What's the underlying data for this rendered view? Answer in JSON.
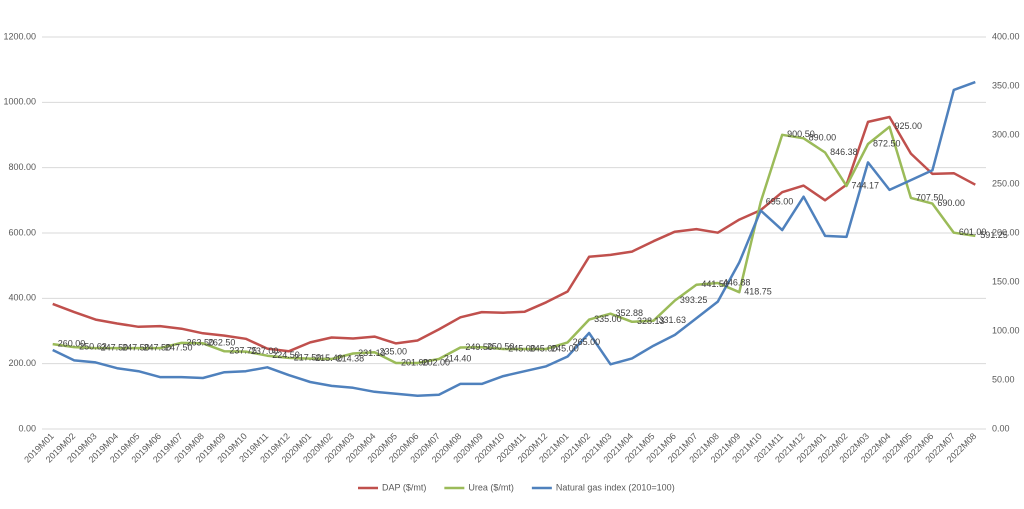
{
  "chart_data": {
    "type": "line",
    "categories": [
      "2019M01",
      "2019M02",
      "2019M03",
      "2019M04",
      "2019M05",
      "2019M06",
      "2019M07",
      "2019M08",
      "2019M09",
      "2019M10",
      "2019M11",
      "2019M12",
      "2020M01",
      "2020M02",
      "2020M03",
      "2020M04",
      "2020M05",
      "2020M06",
      "2020M07",
      "2020M08",
      "2020M09",
      "2020M10",
      "2020M11",
      "2020M12",
      "2021M01",
      "2021M02",
      "2021M03",
      "2021M04",
      "2021M05",
      "2021M06",
      "2021M07",
      "2021M08",
      "2021M09",
      "2021M10",
      "2021M11",
      "2021M12",
      "2022M01",
      "2022M02",
      "2022M03",
      "2022M04",
      "2022M05",
      "2022M06",
      "2022M07",
      "2022M08"
    ],
    "series": [
      {
        "name": "DAP ($/mt)",
        "color": "#c0504d",
        "values": [
          383,
          358,
          335,
          323,
          313,
          315,
          307,
          293,
          286,
          276,
          246,
          238,
          265,
          280,
          277,
          283,
          262,
          271,
          305,
          342,
          358,
          356,
          359,
          388,
          421,
          527,
          533,
          543,
          575,
          604,
          612,
          601,
          641,
          670,
          725,
          745,
          700,
          748,
          940,
          955,
          843,
          781,
          783,
          748
        ]
      },
      {
        "name": "Urea  ($/mt)",
        "color": "#9bbb59",
        "values": [
          260,
          250.63,
          247.5,
          247.5,
          247.5,
          247.5,
          263.5,
          262.5,
          237.75,
          237,
          224.5,
          217.5,
          215.4,
          214.38,
          231.13,
          235,
          201.9,
          202,
          214.4,
          249.5,
          250.5,
          245,
          245,
          245,
          265,
          335,
          352.88,
          328.13,
          331.63,
          393.25,
          441.5,
          446.88,
          418.75,
          695,
          900.5,
          890,
          846.38,
          744.17,
          872.5,
          925,
          707.5,
          690,
          601,
          591.25
        ],
        "value_labels": [
          "260.00",
          "250.63",
          "247.50",
          "247.50",
          "247.50",
          "247.50",
          "263.50",
          "262.50",
          "237.75",
          "237.00",
          "224.50",
          "217.50",
          "215.40",
          "214.38",
          "231.13",
          "235.00",
          "201.90",
          "202.00",
          "214.40",
          "249.50",
          "250.50",
          "245.00",
          "245.00",
          "245.00",
          "265.00",
          "335.00",
          "352.88",
          "328.13",
          "331.63",
          "393.25",
          "441.50",
          "446.88",
          "418.75",
          "695.00",
          "900.50",
          "890.00",
          "846.38",
          "744.17",
          "872.50",
          "925.00",
          "707.50",
          "690.00",
          "601.00",
          "591.25"
        ]
      },
      {
        "name": "Natural gas index (2010=100)",
        "color": "#4f81bd",
        "axis": "y2",
        "values": [
          80.6,
          70,
          68,
          62,
          59,
          53,
          53,
          52,
          58,
          59,
          63,
          55,
          48,
          44,
          42,
          38,
          36,
          34,
          35,
          46,
          46,
          54,
          59,
          64,
          74,
          98,
          66,
          72,
          85,
          96,
          113,
          130,
          170,
          223,
          203,
          237,
          197,
          196,
          272,
          244,
          254,
          264,
          346,
          354
        ]
      }
    ],
    "ylim": [
      0,
      1200
    ],
    "yticks": [
      {
        "value": 0,
        "label": "0.00"
      },
      {
        "value": 200,
        "label": "200.00"
      },
      {
        "value": 400,
        "label": "400.00"
      },
      {
        "value": 600,
        "label": "600.00"
      },
      {
        "value": 800,
        "label": "800.00"
      },
      {
        "value": 1000,
        "label": "1000.00"
      },
      {
        "value": 1200,
        "label": "1200.00"
      }
    ],
    "y2lim": [
      0,
      400
    ],
    "y2ticks": [
      {
        "value": 0,
        "label": "0.00"
      },
      {
        "value": 50,
        "label": "50.00"
      },
      {
        "value": 100,
        "label": "100.00"
      },
      {
        "value": 150,
        "label": "150.00"
      },
      {
        "value": 200,
        "label": "200.00"
      },
      {
        "value": 250,
        "label": "250.00"
      },
      {
        "value": 300,
        "label": "300.00"
      },
      {
        "value": 350,
        "label": "350.00"
      },
      {
        "value": 400,
        "label": "400.00"
      }
    ],
    "grid": true,
    "legend": "bottom"
  }
}
